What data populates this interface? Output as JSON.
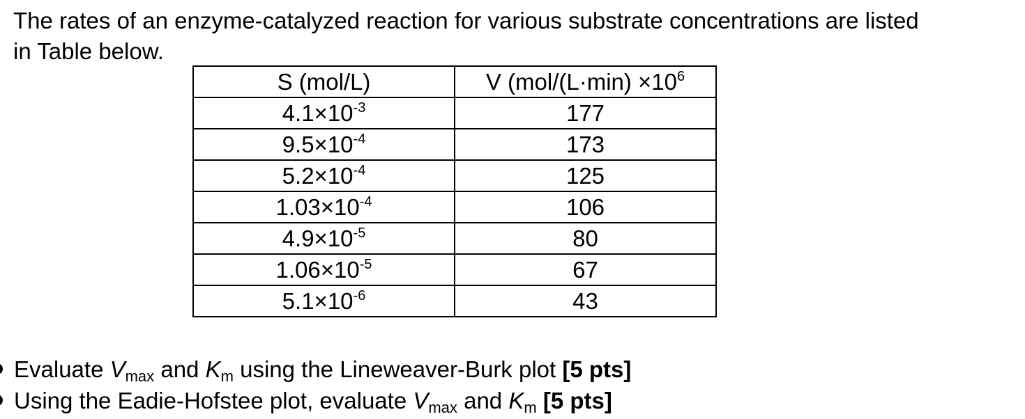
{
  "intro": {
    "line1": "The rates of an enzyme-catalyzed reaction for various substrate concentrations are listed",
    "line2": "in Table below."
  },
  "table": {
    "header_s": "S (mol/L)",
    "header_v_text": "V (mol/(L·min) ×10",
    "header_v_exp": "6",
    "rows": [
      {
        "s_mant": "4.1×10",
        "s_exp": "-3",
        "v": "177"
      },
      {
        "s_mant": "9.5×10",
        "s_exp": "-4",
        "v": "173"
      },
      {
        "s_mant": "5.2×10",
        "s_exp": "-4",
        "v": "125"
      },
      {
        "s_mant": "1.03×10",
        "s_exp": "-4",
        "v": "106"
      },
      {
        "s_mant": "4.9×10",
        "s_exp": "-5",
        "v": "80"
      },
      {
        "s_mant": "1.06×10",
        "s_exp": "-5",
        "v": "67"
      },
      {
        "s_mant": "5.1×10",
        "s_exp": "-6",
        "v": "43"
      }
    ]
  },
  "tasks": [
    {
      "prefix": "Evaluate ",
      "v": "V",
      "v_sub": "max",
      "mid": " and ",
      "k": "K",
      "k_sub": "m",
      "suffix": " using the Lineweaver-Burk plot ",
      "pts": "[5 pts]"
    },
    {
      "prefix": "Using the Eadie-Hofstee plot, evaluate ",
      "v": "V",
      "v_sub": "max",
      "mid": " and ",
      "k": "K",
      "k_sub": "m",
      "suffix": " ",
      "pts": "[5 pts]"
    }
  ]
}
